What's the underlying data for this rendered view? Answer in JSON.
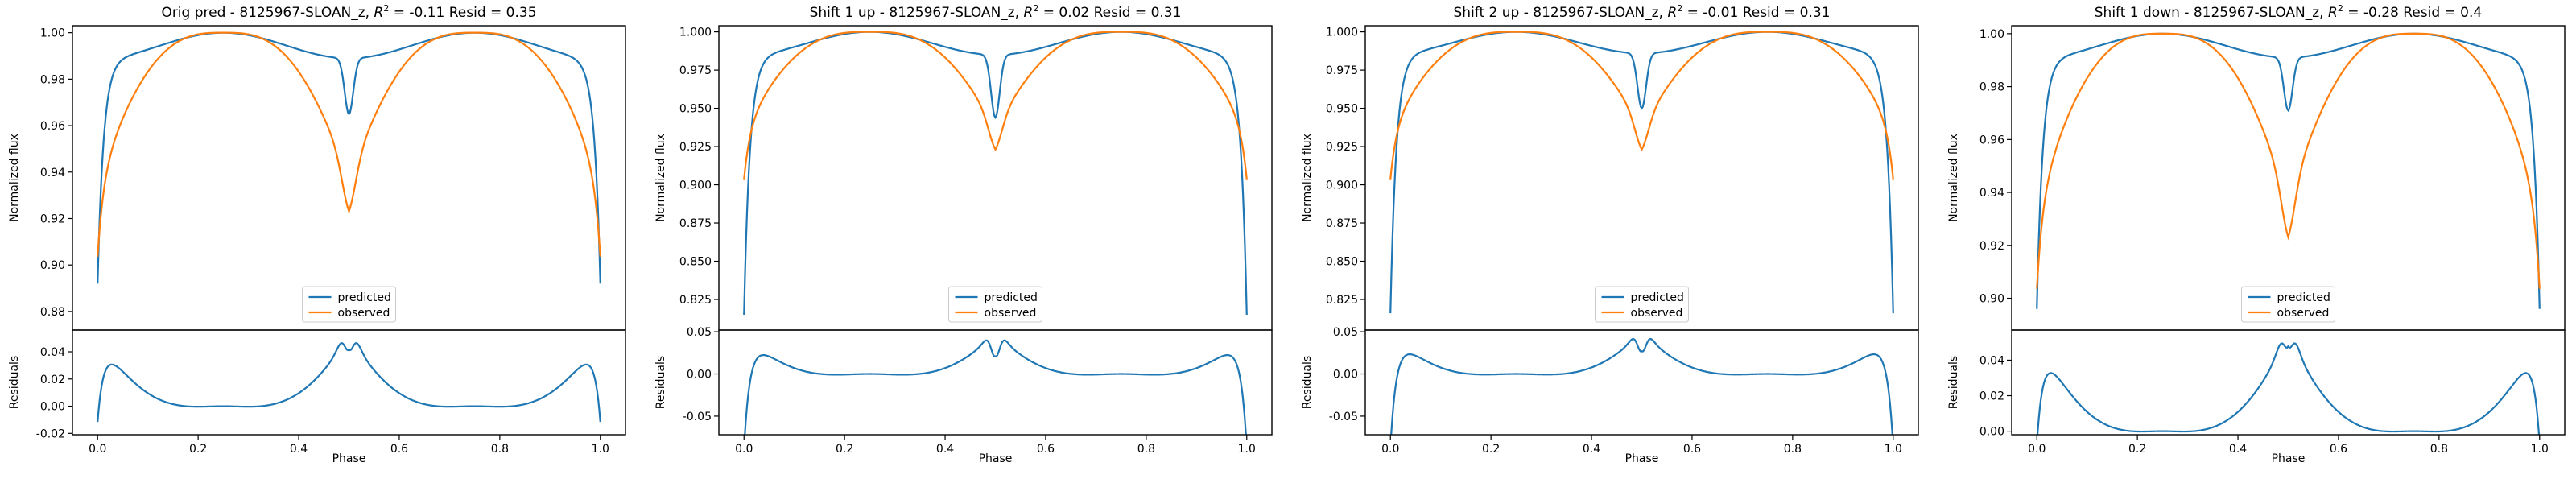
{
  "chart_data": [
    {
      "type": "line",
      "title": "Orig pred - 8125967-SLOAN_z, $R^2 = $-0.11 Resid = 0.35",
      "title_parts": {
        "pre": "Orig pred - 8125967-SLOAN_z, ",
        "r2": "R",
        "sup": "2",
        "post": " = -0.11 Resid = 0.35"
      },
      "xlabel": "Phase",
      "ylabel": "Normalized flux",
      "resid_ylabel": "Residuals",
      "xlim": [
        -0.05,
        1.05
      ],
      "ylim": [
        0.872,
        1.003
      ],
      "yticks": [
        "0.88",
        "0.90",
        "0.92",
        "0.94",
        "0.96",
        "0.98",
        "1.00"
      ],
      "resid_ylim": [
        -0.021,
        0.056
      ],
      "resid_yticks": [
        "-0.02",
        "0.00",
        "0.02",
        "0.04"
      ],
      "xticks": [
        "0.0",
        "0.2",
        "0.4",
        "0.6",
        "0.8",
        "1.0"
      ],
      "legend_position": "lower-center",
      "series": [
        {
          "name": "predicted",
          "color": "#1f77b4",
          "params": {
            "base": 0.989,
            "bulge": 0.011,
            "ingress_depth": 0.097,
            "ingress_width": 0.012,
            "secondary_depth": 0.024,
            "secondary_width": 0.012
          }
        },
        {
          "name": "observed",
          "color": "#ff7f0e",
          "params": {
            "top": 1.0,
            "amp": 0.0634,
            "power": 1.5,
            "dip": 0.0135,
            "dip_width": 0.02,
            "ingress_depth": 0.033,
            "ingress_width": 0.012
          }
        }
      ],
      "residual_series": {
        "color": "#1f77b4",
        "description": "predicted - observed"
      }
    },
    {
      "type": "line",
      "title": "Shift 1 up - 8125967-SLOAN_z, $R^2 = $0.02 Resid = 0.31",
      "title_parts": {
        "pre": "Shift 1 up - 8125967-SLOAN_z, ",
        "r2": "R",
        "sup": "2",
        "post": " = 0.02 Resid = 0.31"
      },
      "xlabel": "Phase",
      "ylabel": "Normalized flux",
      "resid_ylabel": "Residuals",
      "xlim": [
        -0.05,
        1.05
      ],
      "ylim": [
        0.805,
        1.004
      ],
      "yticks": [
        "0.825",
        "0.850",
        "0.875",
        "0.900",
        "0.925",
        "0.950",
        "0.975",
        "1.000"
      ],
      "resid_ylim": [
        -0.072,
        0.052
      ],
      "resid_yticks": [
        "-0.05",
        "0.00",
        "0.05"
      ],
      "xticks": [
        "0.0",
        "0.2",
        "0.4",
        "0.6",
        "0.8",
        "1.0"
      ],
      "legend_position": "lower-center",
      "series": [
        {
          "name": "predicted",
          "color": "#1f77b4",
          "params": {
            "base": 0.985,
            "bulge": 0.015,
            "ingress_depth": 0.17,
            "ingress_width": 0.012,
            "secondary_depth": 0.041,
            "secondary_width": 0.012
          }
        },
        {
          "name": "observed",
          "color": "#ff7f0e",
          "params": {
            "top": 1.0,
            "amp": 0.0634,
            "power": 1.5,
            "dip": 0.0135,
            "dip_width": 0.02,
            "ingress_depth": 0.033,
            "ingress_width": 0.012
          }
        }
      ],
      "residual_series": {
        "color": "#1f77b4",
        "description": "predicted - observed"
      }
    },
    {
      "type": "line",
      "title": "Shift 2 up - 8125967-SLOAN_z, $R^2 = $-0.01 Resid = 0.31",
      "title_parts": {
        "pre": "Shift 2 up - 8125967-SLOAN_z, ",
        "r2": "R",
        "sup": "2",
        "post": " = -0.01 Resid = 0.31"
      },
      "xlabel": "Phase",
      "ylabel": "Normalized flux",
      "resid_ylabel": "Residuals",
      "xlim": [
        -0.05,
        1.05
      ],
      "ylim": [
        0.805,
        1.004
      ],
      "yticks": [
        "0.825",
        "0.850",
        "0.875",
        "0.900",
        "0.925",
        "0.950",
        "0.975",
        "1.000"
      ],
      "resid_ylim": [
        -0.072,
        0.052
      ],
      "resid_yticks": [
        "-0.05",
        "0.00",
        "0.05"
      ],
      "xticks": [
        "0.0",
        "0.2",
        "0.4",
        "0.6",
        "0.8",
        "1.0"
      ],
      "legend_position": "lower-center",
      "series": [
        {
          "name": "predicted",
          "color": "#1f77b4",
          "params": {
            "base": 0.986,
            "bulge": 0.014,
            "ingress_depth": 0.17,
            "ingress_width": 0.012,
            "secondary_depth": 0.036,
            "secondary_width": 0.012
          }
        },
        {
          "name": "observed",
          "color": "#ff7f0e",
          "params": {
            "top": 1.0,
            "amp": 0.0634,
            "power": 1.5,
            "dip": 0.0135,
            "dip_width": 0.02,
            "ingress_depth": 0.033,
            "ingress_width": 0.012
          }
        }
      ],
      "residual_series": {
        "color": "#1f77b4",
        "description": "predicted - observed"
      }
    },
    {
      "type": "line",
      "title": "Shift 1 down - 8125967-SLOAN_z, $R^2 = $-0.28 Resid = 0.4",
      "title_parts": {
        "pre": "Shift 1 down - 8125967-SLOAN_z, ",
        "r2": "R",
        "sup": "2",
        "post": " = -0.28 Resid = 0.4"
      },
      "xlabel": "Phase",
      "ylabel": "Normalized flux",
      "resid_ylabel": "Residuals",
      "xlim": [
        -0.05,
        1.05
      ],
      "ylim": [
        0.888,
        1.003
      ],
      "yticks": [
        "0.90",
        "0.92",
        "0.94",
        "0.96",
        "0.98",
        "1.00"
      ],
      "resid_ylim": [
        -0.002,
        0.057
      ],
      "resid_yticks": [
        "0.00",
        "0.02",
        "0.04"
      ],
      "xticks": [
        "0.0",
        "0.2",
        "0.4",
        "0.6",
        "0.8",
        "1.0"
      ],
      "legend_position": "lower-center",
      "series": [
        {
          "name": "predicted",
          "color": "#1f77b4",
          "params": {
            "base": 0.991,
            "bulge": 0.009,
            "ingress_depth": 0.095,
            "ingress_width": 0.012,
            "secondary_depth": 0.02,
            "secondary_width": 0.012
          }
        },
        {
          "name": "observed",
          "color": "#ff7f0e",
          "params": {
            "top": 1.0,
            "amp": 0.0634,
            "power": 1.5,
            "dip": 0.0135,
            "dip_width": 0.02,
            "ingress_depth": 0.033,
            "ingress_width": 0.012
          }
        }
      ],
      "residual_series": {
        "color": "#1f77b4",
        "description": "predicted - observed"
      }
    }
  ]
}
